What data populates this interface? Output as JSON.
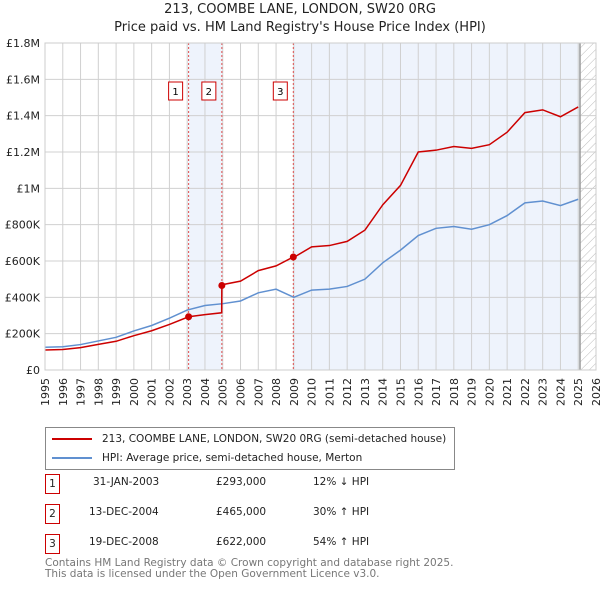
{
  "title": "213, COOMBE LANE, LONDON, SW20 0RG",
  "subtitle": "Price paid vs. HM Land Registry's House Price Index (HPI)",
  "chart_data": {
    "type": "line",
    "title": "213, COOMBE LANE, LONDON, SW20 0RG",
    "subtitle": "Price paid vs. HM Land Registry's House Price Index (HPI)",
    "xlim": [
      1995,
      2026
    ],
    "ylim": [
      0,
      1800000
    ],
    "x_ticks": [
      "1995",
      "1996",
      "1997",
      "1998",
      "1999",
      "2000",
      "2001",
      "2002",
      "2003",
      "2004",
      "2005",
      "2006",
      "2007",
      "2008",
      "2009",
      "2010",
      "2011",
      "2012",
      "2013",
      "2014",
      "2015",
      "2016",
      "2017",
      "2018",
      "2019",
      "2020",
      "2021",
      "2022",
      "2023",
      "2024",
      "2025",
      "2026"
    ],
    "y_ticks": [
      {
        "v": 0,
        "label": "£0"
      },
      {
        "v": 200000,
        "label": "£200K"
      },
      {
        "v": 400000,
        "label": "£400K"
      },
      {
        "v": 600000,
        "label": "£600K"
      },
      {
        "v": 800000,
        "label": "£800K"
      },
      {
        "v": 1000000,
        "label": "£1M"
      },
      {
        "v": 1200000,
        "label": "£1.2M"
      },
      {
        "v": 1400000,
        "label": "£1.4M"
      },
      {
        "v": 1600000,
        "label": "£1.6M"
      },
      {
        "v": 1800000,
        "label": "£1.8M"
      }
    ],
    "grid": true,
    "data_end": 2025.1,
    "series": [
      {
        "name": "213, COOMBE LANE, LONDON, SW20 0RG (semi-detached house)",
        "color": "#cc0000",
        "x": [
          1995,
          1996,
          1997,
          1998,
          1999,
          2000,
          2001,
          2002,
          2003.08,
          2004,
          2004.94,
          2004.95,
          2005,
          2006,
          2007,
          2008,
          2008.97,
          2009,
          2010,
          2011,
          2012,
          2013,
          2014,
          2015,
          2016,
          2017,
          2018,
          2019,
          2020,
          2021,
          2022,
          2023,
          2024,
          2025
        ],
        "y": [
          110000,
          113000,
          123000,
          141000,
          158000,
          189000,
          216000,
          251000,
          293000,
          305000,
          315000,
          465000,
          470000,
          489000,
          547000,
          573000,
          622000,
          620000,
          678000,
          685000,
          708000,
          770000,
          909000,
          1016000,
          1200000,
          1210000,
          1230000,
          1220000,
          1240000,
          1309000,
          1417000,
          1432000,
          1394000,
          1448000
        ]
      },
      {
        "name": "HPI: Average price, semi-detached house, Merton",
        "color": "#6090d0",
        "x": [
          1995,
          1996,
          1997,
          1998,
          1999,
          2000,
          2001,
          2002,
          2003,
          2004,
          2005,
          2006,
          2007,
          2008,
          2009,
          2010,
          2011,
          2012,
          2013,
          2014,
          2015,
          2016,
          2017,
          2018,
          2019,
          2020,
          2021,
          2022,
          2023,
          2024,
          2025
        ],
        "y": [
          125000,
          128000,
          140000,
          160000,
          180000,
          215000,
          245000,
          285000,
          330000,
          355000,
          365000,
          380000,
          425000,
          445000,
          400000,
          440000,
          445000,
          460000,
          500000,
          590000,
          660000,
          740000,
          780000,
          790000,
          775000,
          800000,
          850000,
          920000,
          930000,
          905000,
          940000
        ]
      }
    ],
    "sales": [
      {
        "label": "1",
        "x": 2003.08,
        "y": 293000
      },
      {
        "label": "2",
        "x": 2004.95,
        "y": 465000
      },
      {
        "label": "3",
        "x": 2008.97,
        "y": 622000
      }
    ],
    "legend": "below"
  },
  "table": [
    {
      "num": "1",
      "date": "31-JAN-2003",
      "price": "£293,000",
      "hpi": "12% ↓ HPI"
    },
    {
      "num": "2",
      "date": "13-DEC-2004",
      "price": "£465,000",
      "hpi": "30% ↑ HPI"
    },
    {
      "num": "3",
      "date": "19-DEC-2008",
      "price": "£622,000",
      "hpi": "54% ↑ HPI"
    }
  ],
  "footer": {
    "line1": "Contains HM Land Registry data © Crown copyright and database right 2025.",
    "line2": "This data is licensed under the Open Government Licence v3.0."
  }
}
